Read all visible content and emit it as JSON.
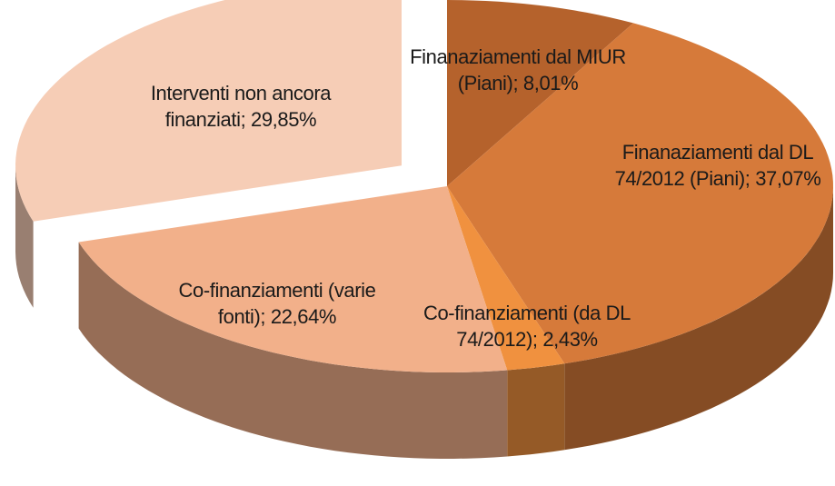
{
  "chart_data": {
    "type": "pie",
    "values": [
      8.01,
      37.07,
      2.43,
      22.64,
      29.85
    ],
    "value_labels": [
      "Finanaziamenti dal MIUR (Piani); 8,01%",
      "Finanaziamenti dal DL 74/2012 (Piani); 37,07%",
      "Co-finanziamenti (da DL 74/2012); 2,43%",
      "Co-finanziamenti (varie fonti); 22,64%",
      "Interventi non ancora finanziati; 29,85%"
    ],
    "colors": [
      "#b5622c",
      "#d67a3a",
      "#f0913f",
      "#f2b08a",
      "#f6cdb6"
    ],
    "exploded": [
      false,
      false,
      false,
      false,
      true
    ]
  }
}
